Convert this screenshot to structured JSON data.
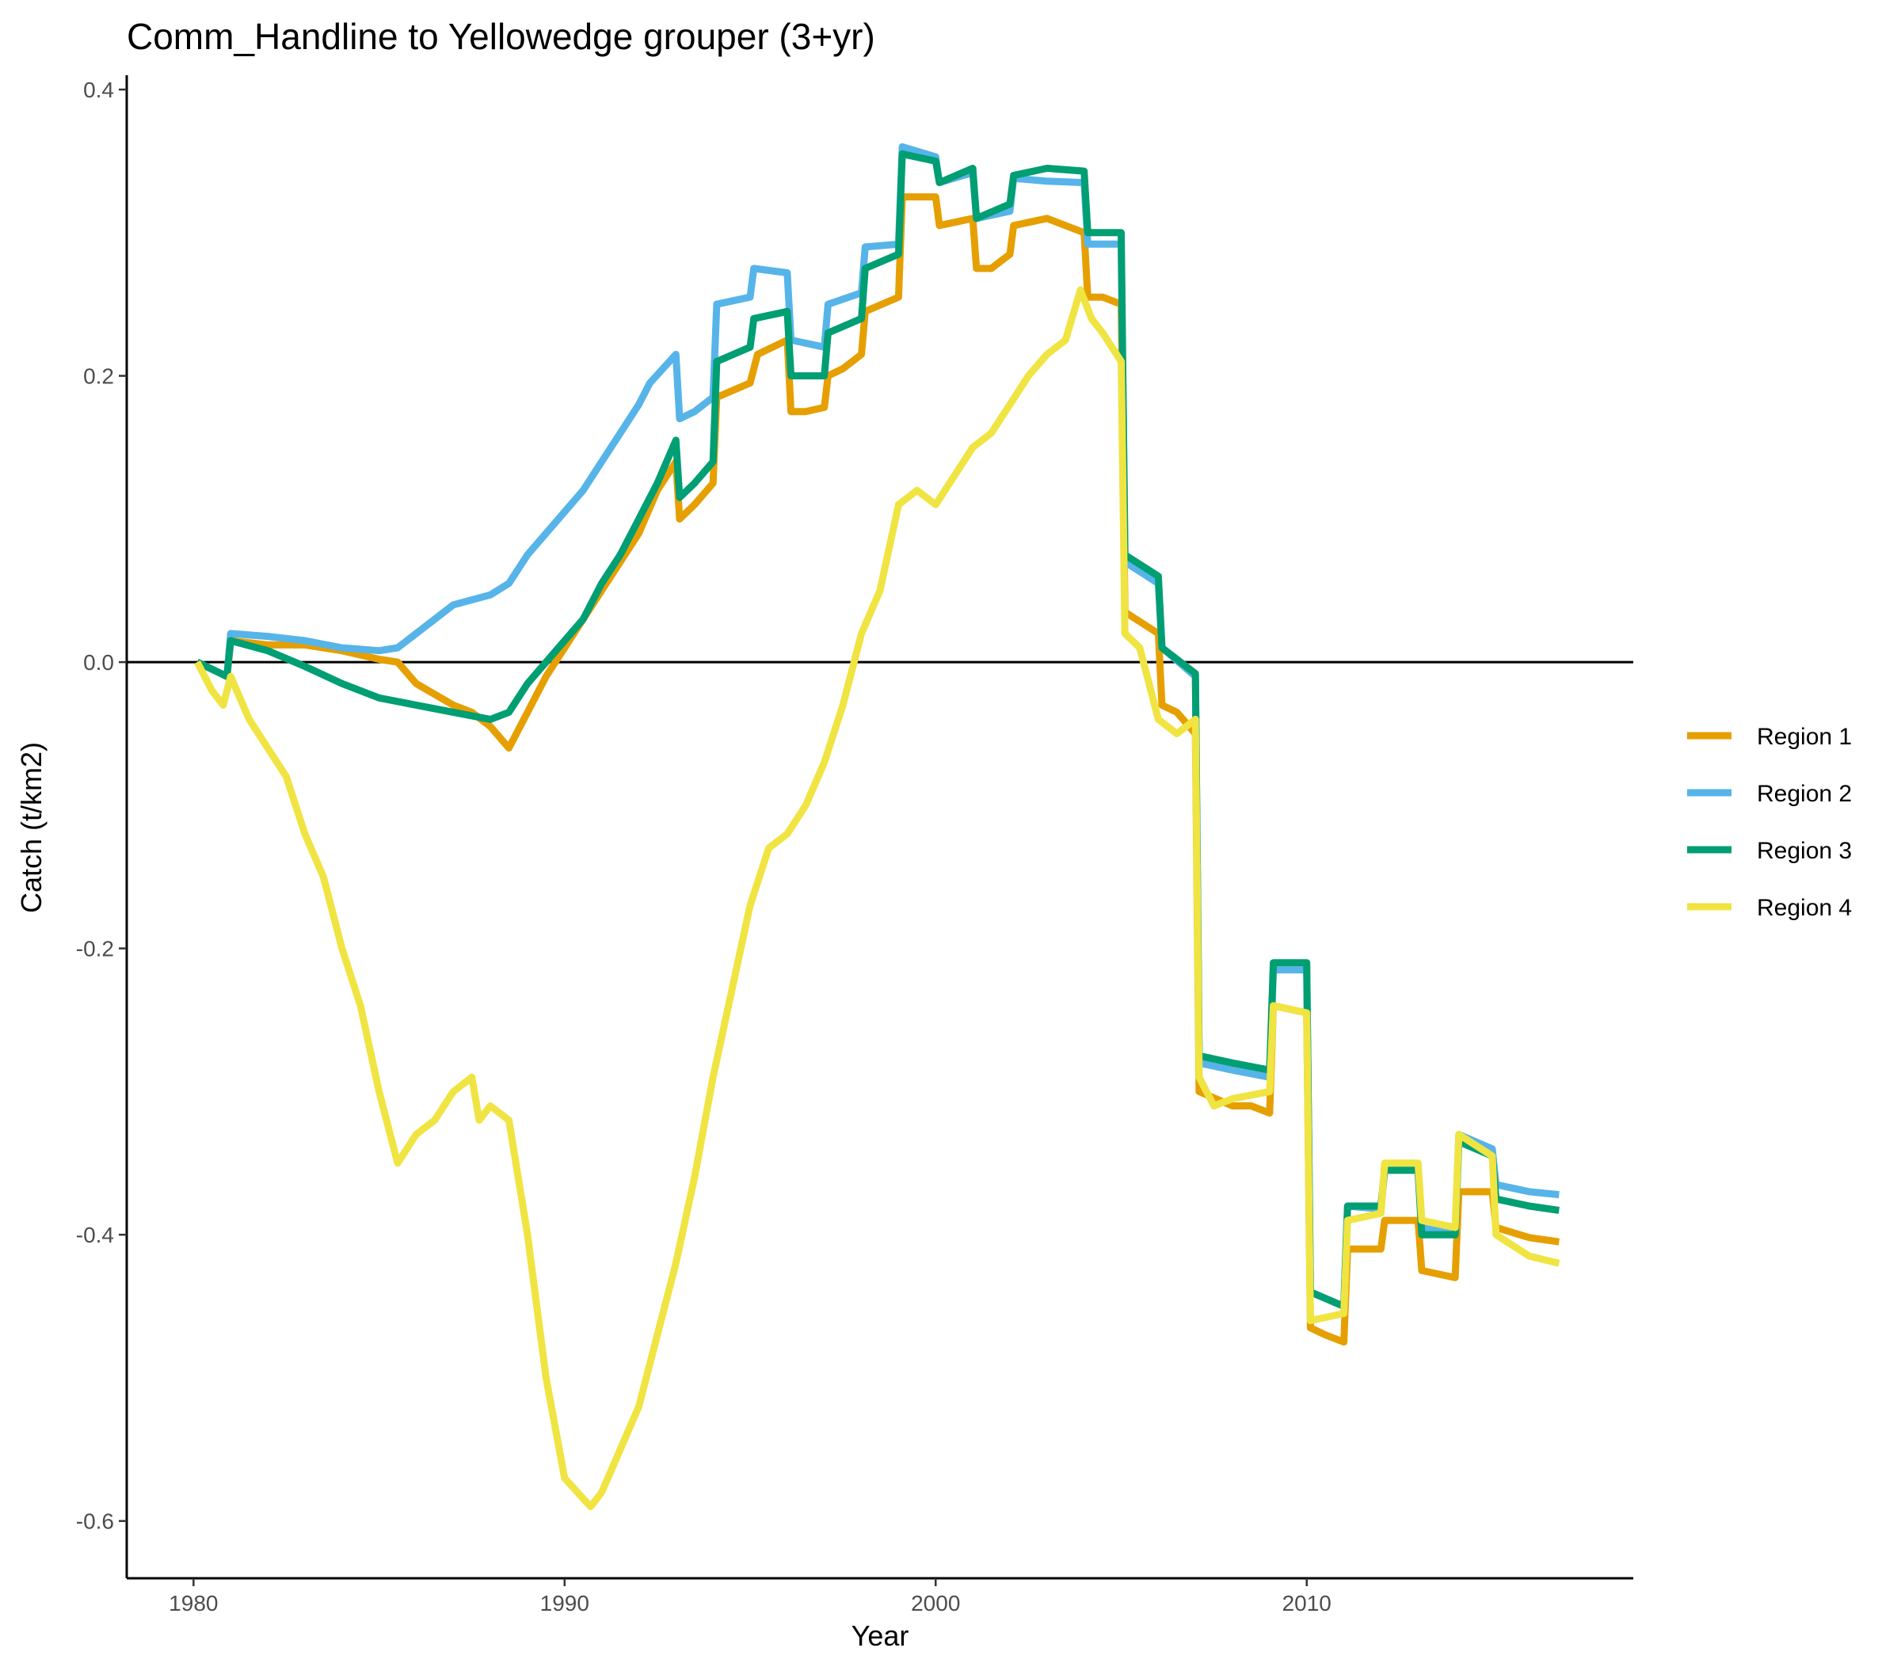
{
  "chart_data": {
    "type": "line",
    "title": "Comm_Handline to Yellowedge grouper (3+yr)",
    "xlabel": "Year",
    "ylabel": "Catch (t/km2)",
    "xlim": [
      1978.2,
      2018.8
    ],
    "ylim": [
      -0.64,
      0.41
    ],
    "x_ticks": [
      1980,
      1990,
      2000,
      2010
    ],
    "x_tick_labels": [
      "1980",
      "1990",
      "2000",
      "2010"
    ],
    "y_ticks": [
      -0.6,
      -0.4,
      -0.2,
      0.0,
      0.2,
      0.4
    ],
    "y_tick_labels": [
      "-0.6",
      "-0.4",
      "-0.2",
      "0.0",
      "0.2",
      "0.4"
    ],
    "reference_line_y": 0,
    "grid": false,
    "legend_position": "right",
    "series": [
      {
        "name": "Region 1",
        "color": "#E69F00",
        "points": [
          [
            1980.1,
            0.0
          ],
          [
            1980.9,
            -0.01
          ],
          [
            1981.0,
            0.015
          ],
          [
            1982,
            0.012
          ],
          [
            1983,
            0.012
          ],
          [
            1984,
            0.008
          ],
          [
            1985,
            0.002
          ],
          [
            1985.5,
            0.0
          ],
          [
            1986,
            -0.015
          ],
          [
            1987,
            -0.03
          ],
          [
            1987.5,
            -0.035
          ],
          [
            1988,
            -0.045
          ],
          [
            1988.5,
            -0.06
          ],
          [
            1989,
            -0.035
          ],
          [
            1989.5,
            -0.01
          ],
          [
            1990,
            0.01
          ],
          [
            1990.5,
            0.03
          ],
          [
            1991,
            0.05
          ],
          [
            1991.5,
            0.07
          ],
          [
            1992,
            0.09
          ],
          [
            1992.5,
            0.12
          ],
          [
            1993,
            0.14
          ],
          [
            1993.1,
            0.1
          ],
          [
            1993.5,
            0.11
          ],
          [
            1994,
            0.125
          ],
          [
            1994.1,
            0.185
          ],
          [
            1995,
            0.195
          ],
          [
            1995.2,
            0.215
          ],
          [
            1996,
            0.225
          ],
          [
            1996.1,
            0.175
          ],
          [
            1996.5,
            0.175
          ],
          [
            1997,
            0.178
          ],
          [
            1997.1,
            0.2
          ],
          [
            1997.5,
            0.205
          ],
          [
            1998,
            0.215
          ],
          [
            1998.1,
            0.245
          ],
          [
            1999,
            0.255
          ],
          [
            1999.1,
            0.325
          ],
          [
            2000,
            0.325
          ],
          [
            2000.1,
            0.305
          ],
          [
            2001,
            0.31
          ],
          [
            2001.1,
            0.275
          ],
          [
            2001.5,
            0.275
          ],
          [
            2002,
            0.285
          ],
          [
            2002.1,
            0.305
          ],
          [
            2003,
            0.31
          ],
          [
            2003.5,
            0.305
          ],
          [
            2004,
            0.3
          ],
          [
            2004.1,
            0.255
          ],
          [
            2004.5,
            0.255
          ],
          [
            2005,
            0.25
          ],
          [
            2005.1,
            0.035
          ],
          [
            2006,
            0.02
          ],
          [
            2006.1,
            -0.03
          ],
          [
            2006.5,
            -0.035
          ],
          [
            2007,
            -0.05
          ],
          [
            2007.1,
            -0.3
          ],
          [
            2008,
            -0.31
          ],
          [
            2008.5,
            -0.31
          ],
          [
            2009,
            -0.315
          ],
          [
            2009.1,
            -0.24
          ],
          [
            2010,
            -0.245
          ],
          [
            2010.1,
            -0.465
          ],
          [
            2010.5,
            -0.47
          ],
          [
            2011,
            -0.475
          ],
          [
            2011.1,
            -0.41
          ],
          [
            2012,
            -0.41
          ],
          [
            2012.1,
            -0.39
          ],
          [
            2013,
            -0.39
          ],
          [
            2013.1,
            -0.425
          ],
          [
            2014,
            -0.43
          ],
          [
            2014.1,
            -0.37
          ],
          [
            2015,
            -0.37
          ],
          [
            2015.1,
            -0.395
          ],
          [
            2016,
            -0.402
          ],
          [
            2016.8,
            -0.405
          ]
        ]
      },
      {
        "name": "Region 2",
        "color": "#56B4E9",
        "points": [
          [
            1980.1,
            0.0
          ],
          [
            1980.9,
            -0.01
          ],
          [
            1981.0,
            0.02
          ],
          [
            1982,
            0.018
          ],
          [
            1983,
            0.015
          ],
          [
            1984,
            0.01
          ],
          [
            1985,
            0.008
          ],
          [
            1985.5,
            0.01
          ],
          [
            1986,
            0.02
          ],
          [
            1987,
            0.04
          ],
          [
            1988,
            0.047
          ],
          [
            1988.5,
            0.055
          ],
          [
            1989,
            0.075
          ],
          [
            1989.5,
            0.09
          ],
          [
            1990,
            0.105
          ],
          [
            1990.5,
            0.12
          ],
          [
            1991,
            0.14
          ],
          [
            1991.5,
            0.16
          ],
          [
            1992,
            0.18
          ],
          [
            1992.3,
            0.195
          ],
          [
            1993,
            0.215
          ],
          [
            1993.1,
            0.17
          ],
          [
            1993.5,
            0.175
          ],
          [
            1994,
            0.185
          ],
          [
            1994.1,
            0.25
          ],
          [
            1995,
            0.255
          ],
          [
            1995.1,
            0.275
          ],
          [
            1996,
            0.272
          ],
          [
            1996.1,
            0.225
          ],
          [
            1997,
            0.22
          ],
          [
            1997.1,
            0.25
          ],
          [
            1998,
            0.258
          ],
          [
            1998.1,
            0.29
          ],
          [
            1999,
            0.292
          ],
          [
            1999.1,
            0.36
          ],
          [
            2000,
            0.353
          ],
          [
            2000.1,
            0.335
          ],
          [
            2001,
            0.342
          ],
          [
            2001.1,
            0.31
          ],
          [
            2002,
            0.315
          ],
          [
            2002.1,
            0.338
          ],
          [
            2003,
            0.336
          ],
          [
            2004,
            0.335
          ],
          [
            2004.1,
            0.292
          ],
          [
            2005,
            0.292
          ],
          [
            2005.1,
            0.07
          ],
          [
            2006,
            0.055
          ],
          [
            2006.1,
            0.01
          ],
          [
            2007,
            -0.01
          ],
          [
            2007.1,
            -0.28
          ],
          [
            2008,
            -0.285
          ],
          [
            2009,
            -0.29
          ],
          [
            2009.1,
            -0.215
          ],
          [
            2010,
            -0.215
          ],
          [
            2010.1,
            -0.44
          ],
          [
            2011,
            -0.45
          ],
          [
            2011.1,
            -0.38
          ],
          [
            2012,
            -0.382
          ],
          [
            2012.1,
            -0.355
          ],
          [
            2013,
            -0.355
          ],
          [
            2013.1,
            -0.395
          ],
          [
            2014,
            -0.4
          ],
          [
            2014.1,
            -0.33
          ],
          [
            2015,
            -0.34
          ],
          [
            2015.1,
            -0.365
          ],
          [
            2016,
            -0.37
          ],
          [
            2016.8,
            -0.372
          ]
        ]
      },
      {
        "name": "Region 3",
        "color": "#009E73",
        "points": [
          [
            1980.1,
            0.0
          ],
          [
            1980.9,
            -0.01
          ],
          [
            1981.0,
            0.015
          ],
          [
            1982,
            0.008
          ],
          [
            1983,
            -0.003
          ],
          [
            1984,
            -0.015
          ],
          [
            1985,
            -0.025
          ],
          [
            1986,
            -0.03
          ],
          [
            1987,
            -0.035
          ],
          [
            1988,
            -0.04
          ],
          [
            1988.5,
            -0.035
          ],
          [
            1989,
            -0.015
          ],
          [
            1990,
            0.015
          ],
          [
            1990.5,
            0.03
          ],
          [
            1991,
            0.055
          ],
          [
            1991.5,
            0.075
          ],
          [
            1992,
            0.1
          ],
          [
            1992.5,
            0.125
          ],
          [
            1993,
            0.155
          ],
          [
            1993.1,
            0.115
          ],
          [
            1993.5,
            0.125
          ],
          [
            1994,
            0.14
          ],
          [
            1994.1,
            0.21
          ],
          [
            1995,
            0.22
          ],
          [
            1995.1,
            0.24
          ],
          [
            1996,
            0.245
          ],
          [
            1996.1,
            0.2
          ],
          [
            1997,
            0.2
          ],
          [
            1997.1,
            0.23
          ],
          [
            1998,
            0.24
          ],
          [
            1998.1,
            0.275
          ],
          [
            1999,
            0.285
          ],
          [
            1999.1,
            0.355
          ],
          [
            2000,
            0.35
          ],
          [
            2000.1,
            0.335
          ],
          [
            2001,
            0.345
          ],
          [
            2001.1,
            0.31
          ],
          [
            2002,
            0.32
          ],
          [
            2002.1,
            0.34
          ],
          [
            2003,
            0.345
          ],
          [
            2004,
            0.343
          ],
          [
            2004.1,
            0.3
          ],
          [
            2005,
            0.3
          ],
          [
            2005.1,
            0.075
          ],
          [
            2006,
            0.06
          ],
          [
            2006.1,
            0.01
          ],
          [
            2007,
            -0.008
          ],
          [
            2007.1,
            -0.275
          ],
          [
            2008,
            -0.28
          ],
          [
            2009,
            -0.285
          ],
          [
            2009.1,
            -0.21
          ],
          [
            2010,
            -0.21
          ],
          [
            2010.1,
            -0.44
          ],
          [
            2011,
            -0.45
          ],
          [
            2011.1,
            -0.38
          ],
          [
            2012,
            -0.38
          ],
          [
            2012.1,
            -0.355
          ],
          [
            2013,
            -0.355
          ],
          [
            2013.1,
            -0.4
          ],
          [
            2014,
            -0.4
          ],
          [
            2014.1,
            -0.335
          ],
          [
            2015,
            -0.345
          ],
          [
            2015.1,
            -0.375
          ],
          [
            2016,
            -0.38
          ],
          [
            2016.8,
            -0.383
          ]
        ]
      },
      {
        "name": "Region 4",
        "color": "#F0E442",
        "points": [
          [
            1980.1,
            0.0
          ],
          [
            1980.5,
            -0.02
          ],
          [
            1980.8,
            -0.03
          ],
          [
            1981.0,
            -0.01
          ],
          [
            1981.5,
            -0.04
          ],
          [
            1982,
            -0.06
          ],
          [
            1982.5,
            -0.08
          ],
          [
            1983,
            -0.12
          ],
          [
            1983.5,
            -0.15
          ],
          [
            1984,
            -0.2
          ],
          [
            1984.5,
            -0.24
          ],
          [
            1985,
            -0.3
          ],
          [
            1985.5,
            -0.35
          ],
          [
            1986,
            -0.33
          ],
          [
            1986.5,
            -0.32
          ],
          [
            1987,
            -0.3
          ],
          [
            1987.5,
            -0.29
          ],
          [
            1987.7,
            -0.32
          ],
          [
            1988,
            -0.31
          ],
          [
            1988.5,
            -0.32
          ],
          [
            1989,
            -0.4
          ],
          [
            1989.5,
            -0.5
          ],
          [
            1990,
            -0.57
          ],
          [
            1990.7,
            -0.59
          ],
          [
            1991,
            -0.58
          ],
          [
            1991.5,
            -0.55
          ],
          [
            1992,
            -0.52
          ],
          [
            1992.5,
            -0.47
          ],
          [
            1993,
            -0.42
          ],
          [
            1993.5,
            -0.36
          ],
          [
            1994,
            -0.29
          ],
          [
            1994.5,
            -0.23
          ],
          [
            1995,
            -0.17
          ],
          [
            1995.5,
            -0.13
          ],
          [
            1996,
            -0.12
          ],
          [
            1996.5,
            -0.1
          ],
          [
            1997,
            -0.07
          ],
          [
            1997.5,
            -0.03
          ],
          [
            1998,
            0.02
          ],
          [
            1998.5,
            0.05
          ],
          [
            1999,
            0.11
          ],
          [
            1999.5,
            0.12
          ],
          [
            2000,
            0.11
          ],
          [
            2000.5,
            0.13
          ],
          [
            2001,
            0.15
          ],
          [
            2001.5,
            0.16
          ],
          [
            2002,
            0.18
          ],
          [
            2002.5,
            0.2
          ],
          [
            2003,
            0.215
          ],
          [
            2003.5,
            0.225
          ],
          [
            2003.9,
            0.26
          ],
          [
            2004.2,
            0.24
          ],
          [
            2004.5,
            0.23
          ],
          [
            2005,
            0.21
          ],
          [
            2005.1,
            0.02
          ],
          [
            2005.5,
            0.01
          ],
          [
            2006,
            -0.04
          ],
          [
            2006.5,
            -0.05
          ],
          [
            2007,
            -0.04
          ],
          [
            2007.1,
            -0.29
          ],
          [
            2007.5,
            -0.31
          ],
          [
            2008,
            -0.305
          ],
          [
            2009,
            -0.3
          ],
          [
            2009.1,
            -0.24
          ],
          [
            2010,
            -0.245
          ],
          [
            2010.1,
            -0.46
          ],
          [
            2011,
            -0.455
          ],
          [
            2011.1,
            -0.39
          ],
          [
            2012,
            -0.385
          ],
          [
            2012.1,
            -0.35
          ],
          [
            2013,
            -0.35
          ],
          [
            2013.1,
            -0.39
          ],
          [
            2014,
            -0.395
          ],
          [
            2014.1,
            -0.33
          ],
          [
            2015,
            -0.345
          ],
          [
            2015.1,
            -0.4
          ],
          [
            2016,
            -0.415
          ],
          [
            2016.8,
            -0.42
          ]
        ]
      }
    ]
  }
}
